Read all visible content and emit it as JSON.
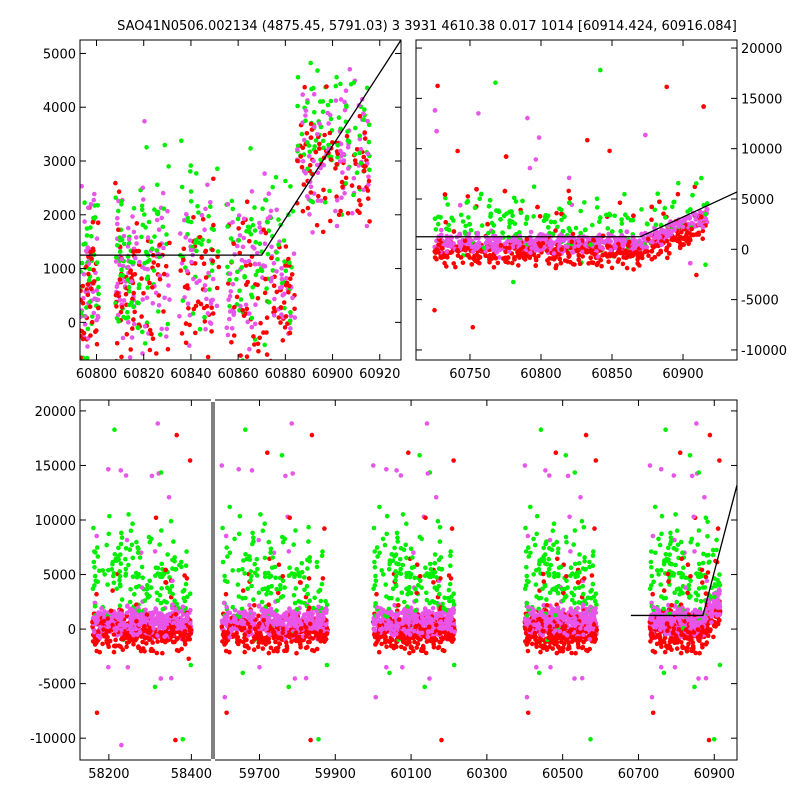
{
  "title": "SAO41N0506.002134 (4875.45, 5791.03)  3 3931 4610.38 0.017 1014 [60914.424, 60916.084]",
  "colors": {
    "green": "#00ee00",
    "magenta": "#e855e8",
    "red": "#ff0000",
    "model": "#000000"
  },
  "chart_data": [
    {
      "type": "scatter",
      "panel": "top-left",
      "title": "",
      "xlabel": "",
      "ylabel": "",
      "xlim": [
        60793,
        60929
      ],
      "ylim": [
        -700,
        5250
      ],
      "xticks": [
        60800,
        60820,
        60840,
        60860,
        60880,
        60900,
        60920
      ],
      "yticks": [
        0,
        1000,
        2000,
        3000,
        4000,
        5000
      ],
      "y_axis_side": "left",
      "clusters": [
        {
          "x_range": [
            60793,
            60801
          ],
          "y_center": 700,
          "spread": 2000
        },
        {
          "x_range": [
            60808,
            60816
          ],
          "y_center": 900,
          "spread": 1900
        },
        {
          "x_range": [
            60816,
            60831
          ],
          "y_center": 1000,
          "spread": 2000
        },
        {
          "x_range": [
            60835,
            60852
          ],
          "y_center": 1100,
          "spread": 2000
        },
        {
          "x_range": [
            60855,
            60870
          ],
          "y_center": 900,
          "spread": 1900
        },
        {
          "x_range": [
            60870,
            60884
          ],
          "y_center": 900,
          "spread": 1900
        },
        {
          "x_range": [
            60885,
            60900
          ],
          "y_center": 3300,
          "spread": 1600
        },
        {
          "x_range": [
            60901,
            60916
          ],
          "y_center": 3200,
          "spread": 1700
        }
      ],
      "series": [
        {
          "name": "",
          "color": "#00ee00"
        },
        {
          "name": "",
          "color": "#e855e8"
        },
        {
          "name": "",
          "color": "#ff0000"
        }
      ],
      "model_line": {
        "x": [
          60793,
          60870,
          60929
        ],
        "y": [
          1250,
          1250,
          5250
        ]
      }
    },
    {
      "type": "scatter",
      "panel": "top-right",
      "title": "",
      "xlabel": "",
      "ylabel": "",
      "xlim": [
        60712,
        60938
      ],
      "ylim": [
        -11000,
        20800
      ],
      "xticks": [
        60750,
        60800,
        60850,
        60900
      ],
      "yticks": [
        -10000,
        -5000,
        0,
        5000,
        10000,
        15000,
        20000
      ],
      "y_axis_side": "right",
      "data_x_range": [
        60725,
        60917
      ],
      "series": [
        {
          "name": "",
          "color": "#00ee00"
        },
        {
          "name": "",
          "color": "#e855e8"
        },
        {
          "name": "",
          "color": "#ff0000"
        }
      ],
      "model_line": {
        "x": [
          60712,
          60870,
          60938
        ],
        "y": [
          1250,
          1250,
          5700
        ]
      }
    },
    {
      "type": "scatter",
      "panel": "bottom",
      "title": "",
      "xlabel": "",
      "ylabel": "",
      "ylim": [
        -12000,
        21000
      ],
      "yticks": [
        -10000,
        -5000,
        0,
        5000,
        10000,
        15000,
        20000
      ],
      "y_axis_side": "left",
      "segments": [
        {
          "xlim": [
            58130,
            58450
          ],
          "xticks": [
            58200,
            58400
          ],
          "data_x_range": [
            58160,
            58400
          ]
        },
        {
          "xlim": [
            59580,
            60960
          ],
          "xticks": [
            59700,
            59900,
            60100,
            60300,
            60500,
            60700,
            60900
          ],
          "data_x_ranges": [
            [
              59600,
              59880
            ],
            [
              60000,
              60215
            ],
            [
              60400,
              60590
            ],
            [
              60730,
              60916
            ]
          ]
        }
      ],
      "series": [
        {
          "name": "",
          "color": "#00ee00"
        },
        {
          "name": "",
          "color": "#e855e8"
        },
        {
          "name": "",
          "color": "#ff0000"
        }
      ],
      "model_line": {
        "x": [
          60680,
          60870,
          60960
        ],
        "y": [
          1250,
          1250,
          13200
        ]
      }
    }
  ]
}
